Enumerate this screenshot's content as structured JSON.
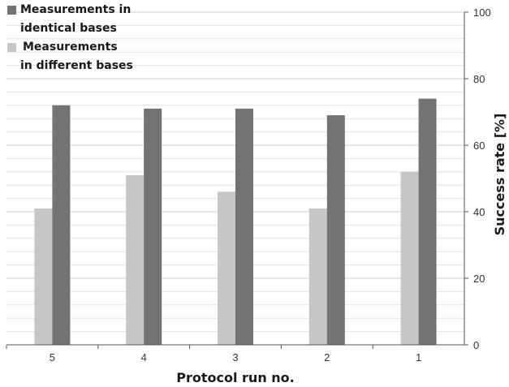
{
  "chart_data": {
    "type": "bar",
    "categories": [
      "5",
      "4",
      "3",
      "2",
      "1"
    ],
    "series": [
      {
        "name": "Measurements in different bases",
        "legend_lines": [
          "Measurements",
          "in different bases"
        ],
        "color": "#c6c6c6",
        "values": [
          41,
          51,
          46,
          41,
          52
        ]
      },
      {
        "name": "Measurements in identical bases",
        "legend_lines": [
          "Measurements in",
          "identical bases"
        ],
        "color": "#737373",
        "values": [
          72,
          71,
          71,
          69,
          74
        ]
      }
    ],
    "xlabel": "Protocol run no.",
    "ylabel": "Success rate [%]",
    "ylim": [
      0,
      100
    ],
    "yticks": [
      "0",
      "20",
      "40",
      "60",
      "80",
      "100"
    ],
    "y_axis_position": "right",
    "grid": true,
    "legend_position": "top-left"
  }
}
